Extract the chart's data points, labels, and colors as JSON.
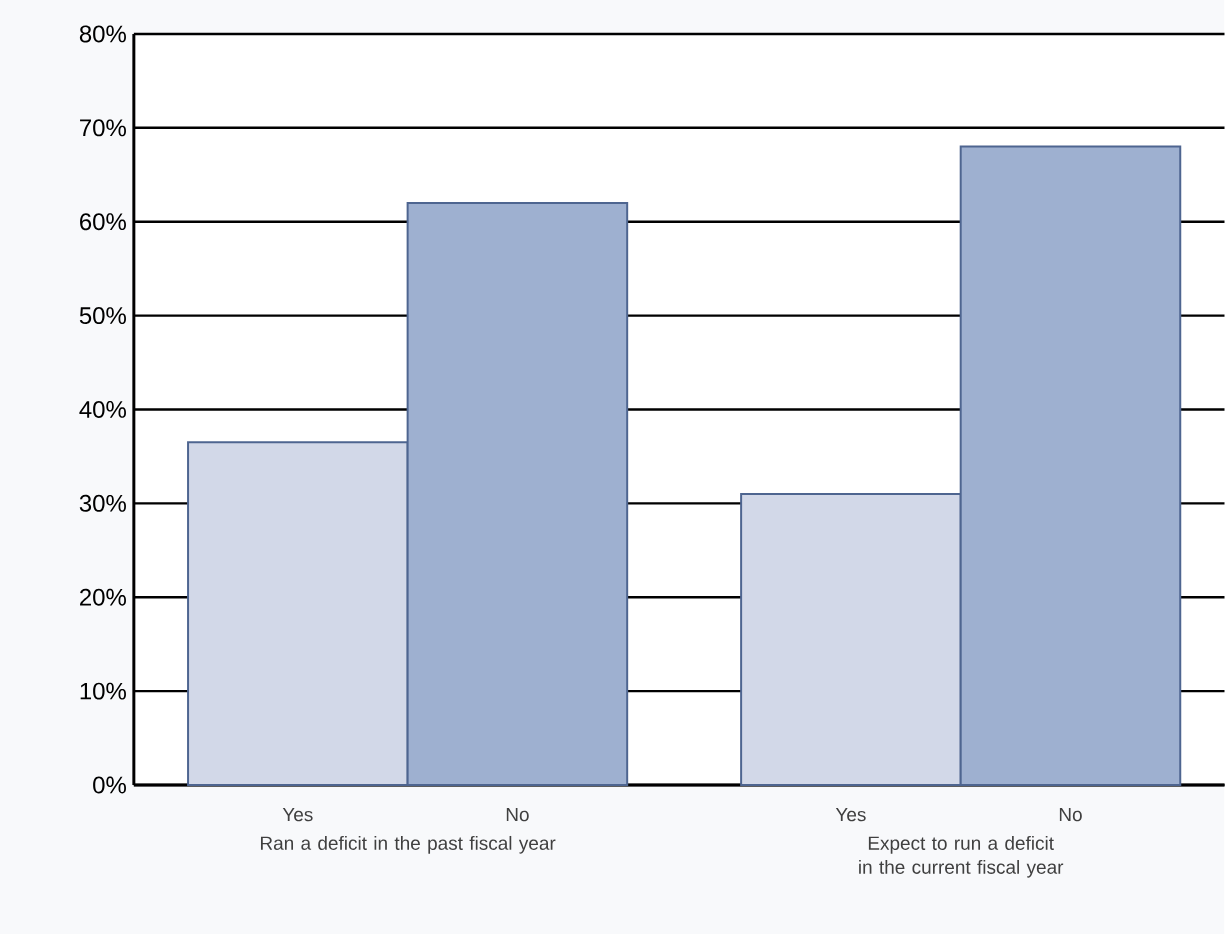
{
  "chart_data": {
    "type": "bar",
    "categories": [
      "Ran a deficit in the past fiscal year",
      "Expect to run a deficit in the current fiscal year"
    ],
    "series": [
      {
        "name": "Yes",
        "color": "#d2d8e8",
        "values": [
          36.5,
          31
        ]
      },
      {
        "name": "No",
        "color": "#9eb0d0",
        "values": [
          62,
          68
        ]
      }
    ],
    "ylim": [
      0,
      80
    ],
    "yticks": [
      {
        "value": 0,
        "label": "0%"
      },
      {
        "value": 10,
        "label": "10%"
      },
      {
        "value": 20,
        "label": "20%"
      },
      {
        "value": 30,
        "label": "30%"
      },
      {
        "value": 40,
        "label": "40%"
      },
      {
        "value": 50,
        "label": "50%"
      },
      {
        "value": 60,
        "label": "60%"
      },
      {
        "value": 70,
        "label": "70%"
      },
      {
        "value": 80,
        "label": "80%"
      }
    ],
    "grid": "y"
  }
}
